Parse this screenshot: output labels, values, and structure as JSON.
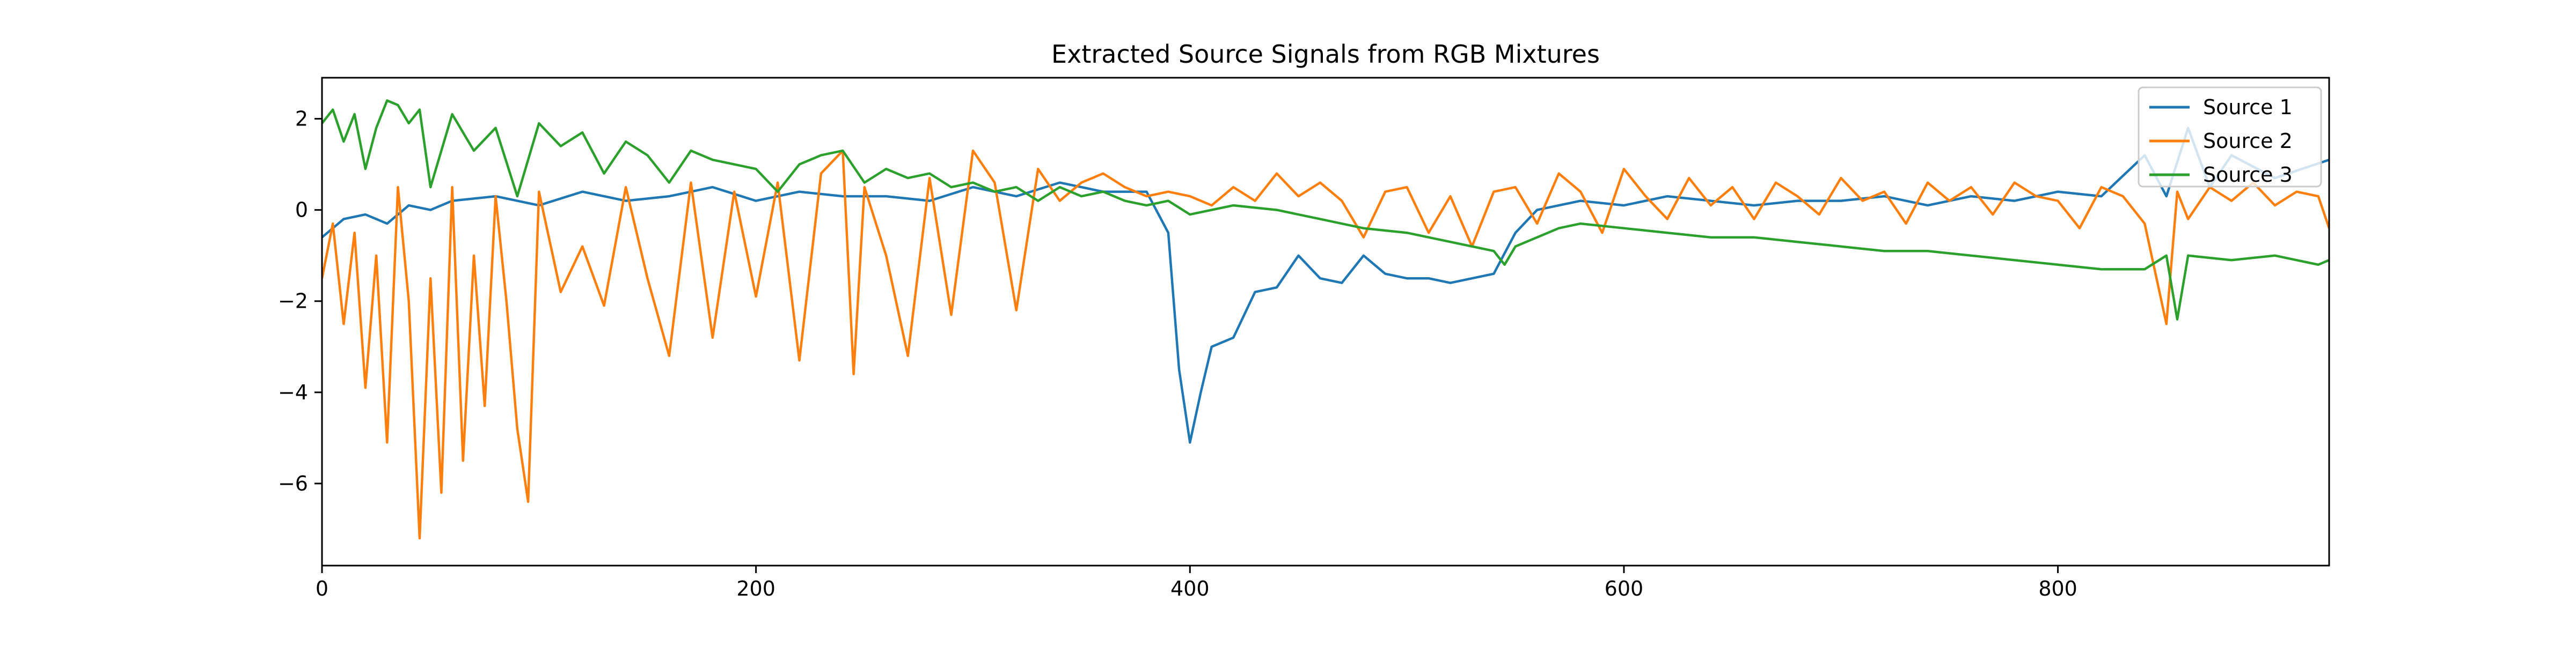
{
  "chart_data": {
    "type": "line",
    "title": "Extracted Source Signals from RGB Mixtures",
    "xlabel": "",
    "ylabel": "",
    "xlim": [
      0,
      925
    ],
    "ylim": [
      -7.8,
      2.9
    ],
    "xticks": [
      0,
      200,
      400,
      600,
      800
    ],
    "yticks": [
      -6,
      -4,
      -2,
      0,
      2
    ],
    "ytick_labels": [
      "−6",
      "−4",
      "−2",
      "0",
      "2"
    ],
    "grid": false,
    "legend": {
      "placement": "top-right",
      "entries": [
        "Source 1",
        "Source 2",
        "Source 3"
      ]
    },
    "series": [
      {
        "name": "Source 1",
        "color": "#1f77b4",
        "x": [
          0,
          10,
          20,
          30,
          40,
          50,
          60,
          80,
          100,
          120,
          140,
          160,
          180,
          200,
          220,
          240,
          260,
          280,
          300,
          320,
          340,
          360,
          380,
          390,
          395,
          400,
          405,
          410,
          420,
          430,
          440,
          450,
          460,
          470,
          480,
          490,
          500,
          510,
          520,
          530,
          540,
          550,
          560,
          580,
          600,
          620,
          640,
          660,
          680,
          700,
          720,
          740,
          760,
          780,
          800,
          820,
          840,
          850,
          860,
          870,
          880,
          900,
          925
        ],
        "values": [
          -0.6,
          -0.2,
          -0.1,
          -0.3,
          0.1,
          0.0,
          0.2,
          0.3,
          0.1,
          0.4,
          0.2,
          0.3,
          0.5,
          0.2,
          0.4,
          0.3,
          0.3,
          0.2,
          0.5,
          0.3,
          0.6,
          0.4,
          0.4,
          -0.5,
          -3.5,
          -5.1,
          -4.0,
          -3.0,
          -2.8,
          -1.8,
          -1.7,
          -1.0,
          -1.5,
          -1.6,
          -1.0,
          -1.4,
          -1.5,
          -1.5,
          -1.6,
          -1.5,
          -1.4,
          -0.5,
          0.0,
          0.2,
          0.1,
          0.3,
          0.2,
          0.1,
          0.2,
          0.2,
          0.3,
          0.1,
          0.3,
          0.2,
          0.4,
          0.3,
          1.2,
          0.3,
          1.8,
          0.5,
          1.2,
          0.7,
          1.1
        ]
      },
      {
        "name": "Source 2",
        "color": "#ff7f0e",
        "x": [
          0,
          5,
          10,
          15,
          20,
          25,
          30,
          35,
          40,
          45,
          50,
          55,
          60,
          65,
          70,
          75,
          80,
          85,
          90,
          95,
          100,
          110,
          120,
          130,
          140,
          150,
          160,
          170,
          180,
          190,
          200,
          210,
          220,
          230,
          240,
          245,
          250,
          260,
          270,
          280,
          290,
          300,
          310,
          320,
          330,
          340,
          350,
          360,
          370,
          380,
          390,
          400,
          410,
          420,
          430,
          440,
          450,
          460,
          470,
          480,
          490,
          500,
          510,
          520,
          530,
          540,
          550,
          560,
          570,
          580,
          590,
          600,
          610,
          620,
          630,
          640,
          650,
          660,
          670,
          680,
          690,
          700,
          710,
          720,
          730,
          740,
          750,
          760,
          770,
          780,
          790,
          800,
          810,
          820,
          830,
          840,
          850,
          855,
          860,
          870,
          880,
          890,
          900,
          910,
          920,
          925
        ],
        "values": [
          -1.5,
          -0.3,
          -2.5,
          -0.5,
          -3.9,
          -1.0,
          -5.1,
          0.5,
          -2.0,
          -7.2,
          -1.5,
          -6.2,
          0.5,
          -5.5,
          -1.0,
          -4.3,
          0.3,
          -2.0,
          -4.8,
          -6.4,
          0.4,
          -1.8,
          -0.8,
          -2.1,
          0.5,
          -1.5,
          -3.2,
          0.6,
          -2.8,
          0.4,
          -1.9,
          0.6,
          -3.3,
          0.8,
          1.3,
          -3.6,
          0.5,
          -1.0,
          -3.2,
          0.7,
          -2.3,
          1.3,
          0.6,
          -2.2,
          0.9,
          0.2,
          0.6,
          0.8,
          0.5,
          0.3,
          0.4,
          0.3,
          0.1,
          0.5,
          0.2,
          0.8,
          0.3,
          0.6,
          0.2,
          -0.6,
          0.4,
          0.5,
          -0.5,
          0.3,
          -0.8,
          0.4,
          0.5,
          -0.3,
          0.8,
          0.4,
          -0.5,
          0.9,
          0.3,
          -0.2,
          0.7,
          0.1,
          0.5,
          -0.2,
          0.6,
          0.3,
          -0.1,
          0.7,
          0.2,
          0.4,
          -0.3,
          0.6,
          0.2,
          0.5,
          -0.1,
          0.6,
          0.3,
          0.2,
          -0.4,
          0.5,
          0.3,
          -0.3,
          -2.5,
          0.4,
          -0.2,
          0.5,
          0.2,
          0.6,
          0.1,
          0.4,
          0.3,
          -0.4
        ]
      },
      {
        "name": "Source 3",
        "color": "#2ca02c",
        "x": [
          0,
          5,
          10,
          15,
          20,
          25,
          30,
          35,
          40,
          45,
          50,
          60,
          70,
          80,
          90,
          100,
          110,
          120,
          130,
          140,
          150,
          160,
          170,
          180,
          190,
          200,
          210,
          220,
          230,
          240,
          250,
          260,
          270,
          280,
          290,
          300,
          310,
          320,
          330,
          340,
          350,
          360,
          370,
          380,
          390,
          400,
          420,
          440,
          460,
          480,
          500,
          520,
          540,
          545,
          550,
          560,
          570,
          580,
          600,
          620,
          640,
          660,
          680,
          700,
          720,
          740,
          760,
          780,
          800,
          820,
          840,
          850,
          855,
          860,
          880,
          900,
          920,
          925
        ],
        "values": [
          1.9,
          2.2,
          1.5,
          2.1,
          0.9,
          1.8,
          2.4,
          2.3,
          1.9,
          2.2,
          0.5,
          2.1,
          1.3,
          1.8,
          0.3,
          1.9,
          1.4,
          1.7,
          0.8,
          1.5,
          1.2,
          0.6,
          1.3,
          1.1,
          1.0,
          0.9,
          0.4,
          1.0,
          1.2,
          1.3,
          0.6,
          0.9,
          0.7,
          0.8,
          0.5,
          0.6,
          0.4,
          0.5,
          0.2,
          0.5,
          0.3,
          0.4,
          0.2,
          0.1,
          0.2,
          -0.1,
          0.1,
          0.0,
          -0.2,
          -0.4,
          -0.5,
          -0.7,
          -0.9,
          -1.2,
          -0.8,
          -0.6,
          -0.4,
          -0.3,
          -0.4,
          -0.5,
          -0.6,
          -0.6,
          -0.7,
          -0.8,
          -0.9,
          -0.9,
          -1.0,
          -1.1,
          -1.2,
          -1.3,
          -1.3,
          -1.0,
          -2.4,
          -1.0,
          -1.1,
          -1.0,
          -1.2,
          -1.1
        ]
      }
    ]
  }
}
